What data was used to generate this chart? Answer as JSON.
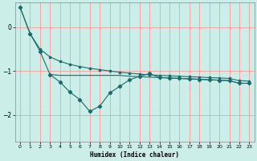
{
  "xlabel": "Humidex (Indice chaleur)",
  "bg_color": "#cceee8",
  "grid_color": "#ff9999",
  "line_color": "#1a6b6b",
  "xlim": [
    -0.5,
    23.5
  ],
  "ylim": [
    -2.6,
    0.55
  ],
  "yticks": [
    0,
    -1,
    -2
  ],
  "xticks": [
    0,
    1,
    2,
    3,
    4,
    5,
    6,
    7,
    8,
    9,
    10,
    11,
    12,
    13,
    14,
    15,
    16,
    17,
    18,
    19,
    20,
    21,
    22,
    23
  ],
  "series1_x": [
    0,
    1,
    2,
    3,
    4,
    5,
    6,
    7,
    8,
    9,
    10,
    11,
    12,
    13,
    14,
    15,
    16,
    17,
    18,
    19,
    20,
    21,
    22,
    23
  ],
  "series1_y": [
    0.45,
    -0.15,
    -0.5,
    -0.68,
    -0.78,
    -0.85,
    -0.9,
    -0.94,
    -0.97,
    -1.0,
    -1.03,
    -1.05,
    -1.07,
    -1.09,
    -1.1,
    -1.11,
    -1.12,
    -1.13,
    -1.14,
    -1.15,
    -1.16,
    -1.17,
    -1.22,
    -1.23
  ],
  "series2_x": [
    0,
    1,
    2,
    3,
    4,
    5,
    6,
    7,
    8,
    9,
    10,
    11,
    12,
    13,
    14,
    15,
    16,
    17,
    18,
    19,
    20,
    21,
    22,
    23
  ],
  "series2_y": [
    0.45,
    -0.15,
    -0.55,
    -1.08,
    -1.25,
    -1.48,
    -1.65,
    -1.92,
    -1.8,
    -1.5,
    -1.35,
    -1.2,
    -1.12,
    -1.06,
    -1.15,
    -1.16,
    -1.17,
    -1.18,
    -1.19,
    -1.2,
    -1.21,
    -1.22,
    -1.28,
    -1.28
  ],
  "series3_x": [
    3,
    4,
    5,
    6,
    7,
    8,
    9,
    10,
    11,
    12,
    13,
    14,
    15,
    16,
    17,
    18,
    19,
    20,
    21,
    22,
    23
  ],
  "series3_y": [
    -1.08,
    -1.1,
    -1.1,
    -1.1,
    -1.1,
    -1.1,
    -1.1,
    -1.1,
    -1.12,
    -1.13,
    -1.14,
    -1.15,
    -1.16,
    -1.17,
    -1.18,
    -1.19,
    -1.2,
    -1.21,
    -1.22,
    -1.28,
    -1.28
  ]
}
